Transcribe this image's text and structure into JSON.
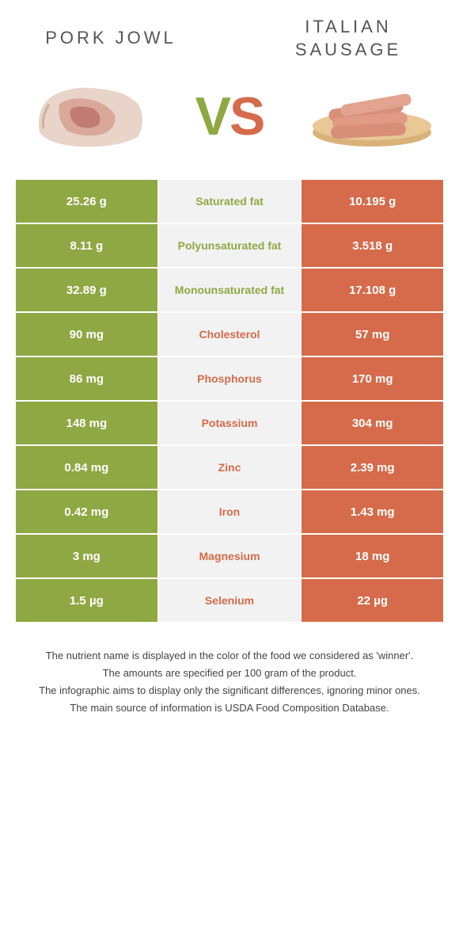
{
  "colors": {
    "green": "#8fa843",
    "orange": "#d56b4a",
    "mid_bg": "#f2f2f2",
    "text": "#444444"
  },
  "header": {
    "left_title": "PORK JOWL",
    "right_title": "ITALIAN SAUSAGE",
    "vs_v": "V",
    "vs_s": "S"
  },
  "rows": [
    {
      "left": "25.26 g",
      "label": "Saturated fat",
      "right": "10.195 g",
      "winner": "left"
    },
    {
      "left": "8.11 g",
      "label": "Polyunsaturated fat",
      "right": "3.518 g",
      "winner": "left"
    },
    {
      "left": "32.89 g",
      "label": "Monounsaturated fat",
      "right": "17.108 g",
      "winner": "left"
    },
    {
      "left": "90 mg",
      "label": "Cholesterol",
      "right": "57 mg",
      "winner": "right"
    },
    {
      "left": "86 mg",
      "label": "Phosphorus",
      "right": "170 mg",
      "winner": "right"
    },
    {
      "left": "148 mg",
      "label": "Potassium",
      "right": "304 mg",
      "winner": "right"
    },
    {
      "left": "0.84 mg",
      "label": "Zinc",
      "right": "2.39 mg",
      "winner": "right"
    },
    {
      "left": "0.42 mg",
      "label": "Iron",
      "right": "1.43 mg",
      "winner": "right"
    },
    {
      "left": "3 mg",
      "label": "Magnesium",
      "right": "18 mg",
      "winner": "right"
    },
    {
      "left": "1.5 µg",
      "label": "Selenium",
      "right": "22 µg",
      "winner": "right"
    }
  ],
  "footer": {
    "line1": "The nutrient name is displayed in the color of the food we considered as 'winner'.",
    "line2": "The amounts are specified per 100 gram of the product.",
    "line3": "The infographic aims to display only the significant differences, ignoring minor ones.",
    "line4": "The main source of information is USDA Food Composition Database."
  }
}
